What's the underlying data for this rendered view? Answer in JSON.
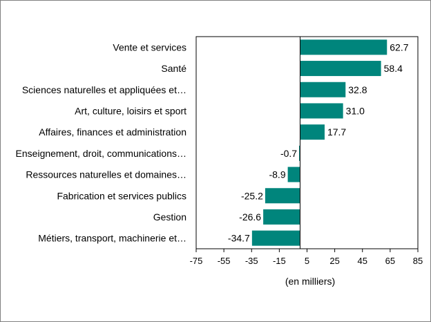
{
  "chart_data": {
    "type": "bar",
    "orientation": "horizontal",
    "categories": [
      "Vente et services",
      "Santé",
      "Sciences naturelles et appliquées et…",
      "Art, culture, loisirs et sport",
      "Affaires, finances et administration",
      "Enseignement, droit, communications…",
      "Ressources naturelles et domaines…",
      "Fabrication et services publics",
      "Gestion",
      "Métiers, transport, machinerie et…"
    ],
    "values": [
      62.7,
      58.4,
      32.8,
      31.0,
      17.7,
      -0.7,
      -8.9,
      -25.2,
      -26.6,
      -34.7
    ],
    "value_labels": [
      "62.7",
      "58.4",
      "32.8",
      "31.0",
      "17.7",
      "-0.7",
      "-8.9",
      "-25.2",
      "-26.6",
      "-34.7"
    ],
    "xticks": [
      -75,
      -55,
      -35,
      -15,
      5,
      25,
      45,
      65,
      85
    ],
    "xlim": [
      -75,
      85
    ],
    "xlabel": "(en milliers)",
    "bar_color": "#00857c",
    "grid": false,
    "legend": false
  }
}
